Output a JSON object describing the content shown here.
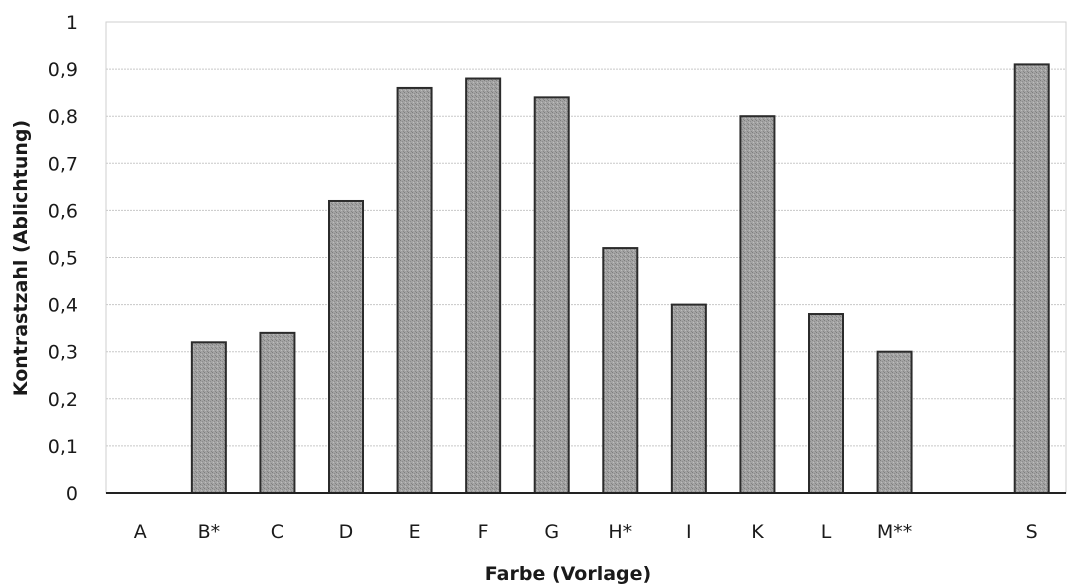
{
  "chart_data": {
    "type": "bar",
    "xlabel": "Farbe (Vorlage)",
    "ylabel": "Kontrastzahl (Ablichtung)",
    "ylim": [
      0,
      1
    ],
    "ytick_step": 0.1,
    "ytick_labels": [
      "0",
      "0,1",
      "0,2",
      "0,3",
      "0,4",
      "0,5",
      "0,6",
      "0,7",
      "0,8",
      "0,9",
      "1"
    ],
    "grid": "horizontal",
    "bar_color": "#9a9a9a",
    "bar_edge_color": "#2b2b2b",
    "categories": [
      "A",
      "B*",
      "C",
      "D",
      "E",
      "F",
      "G",
      "H*",
      "I",
      "K",
      "L",
      "M**",
      "",
      "S"
    ],
    "values": [
      0,
      0.32,
      0.34,
      0.62,
      0.86,
      0.88,
      0.84,
      0.52,
      0.4,
      0.8,
      0.38,
      0.3,
      null,
      0.91
    ]
  }
}
